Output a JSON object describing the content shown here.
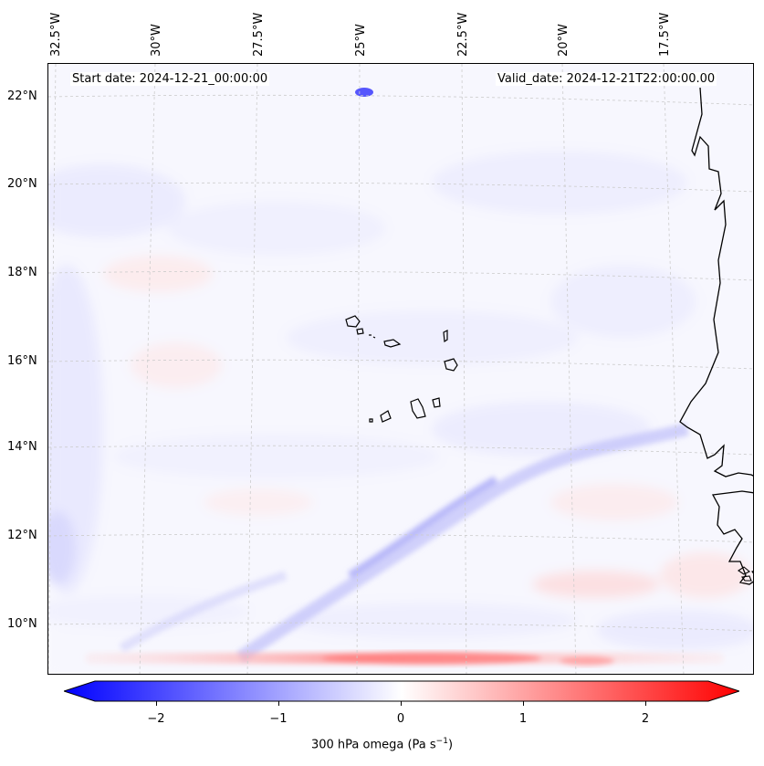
{
  "header": {
    "start_date": "Start date: 2024-12-21_00:00:00",
    "valid_date": "Valid_date: 2024-12-21T22:00:00.00"
  },
  "longitude_labels": [
    "32.5°W",
    "30°W",
    "27.5°W",
    "25°W",
    "22.5°W",
    "20°W",
    "17.5°W"
  ],
  "latitude_labels": [
    "22°N",
    "20°N",
    "18°N",
    "16°N",
    "14°N",
    "12°N",
    "10°N"
  ],
  "colorbar": {
    "label_main": "300 hPa omega (Pa s",
    "label_exp": "−1",
    "label_close": ")",
    "ticks": [
      "−2",
      "−1",
      "0",
      "1",
      "2"
    ],
    "range": [
      -2.6,
      2.6
    ],
    "color_low": "#0000ff",
    "color_mid": "#ffffff",
    "color_high": "#ff0000"
  },
  "map": {
    "variable": "300 hPa omega",
    "lon_range_deg": [
      -33,
      -16.5
    ],
    "lat_range_deg": [
      9,
      22.8
    ],
    "coastline_color": "#000000",
    "gridline_color": "#cccccc"
  }
}
